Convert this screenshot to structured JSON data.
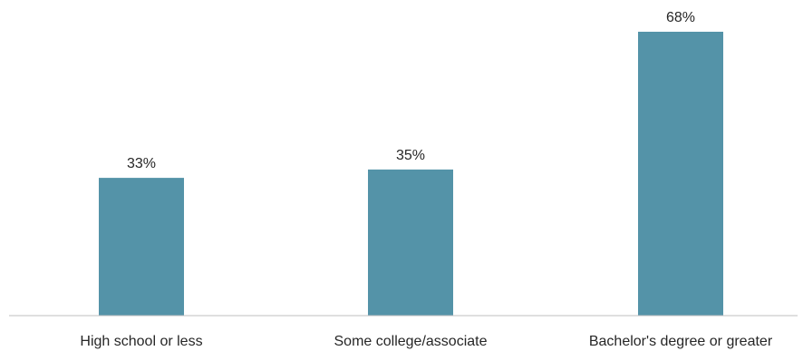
{
  "chart_data": {
    "type": "bar",
    "title": "",
    "xlabel": "",
    "ylabel": "",
    "categories": [
      "High school or less",
      "Some college/associate",
      "Bachelor's degree or greater"
    ],
    "values": [
      33,
      35,
      68
    ],
    "value_labels": [
      "33%",
      "35%",
      "68%"
    ],
    "ylim": [
      0,
      68
    ],
    "grid": false,
    "legend": "none",
    "colors": {
      "bar": "#5493A8",
      "axis": "#BFBFBF",
      "text": "#262626"
    }
  }
}
